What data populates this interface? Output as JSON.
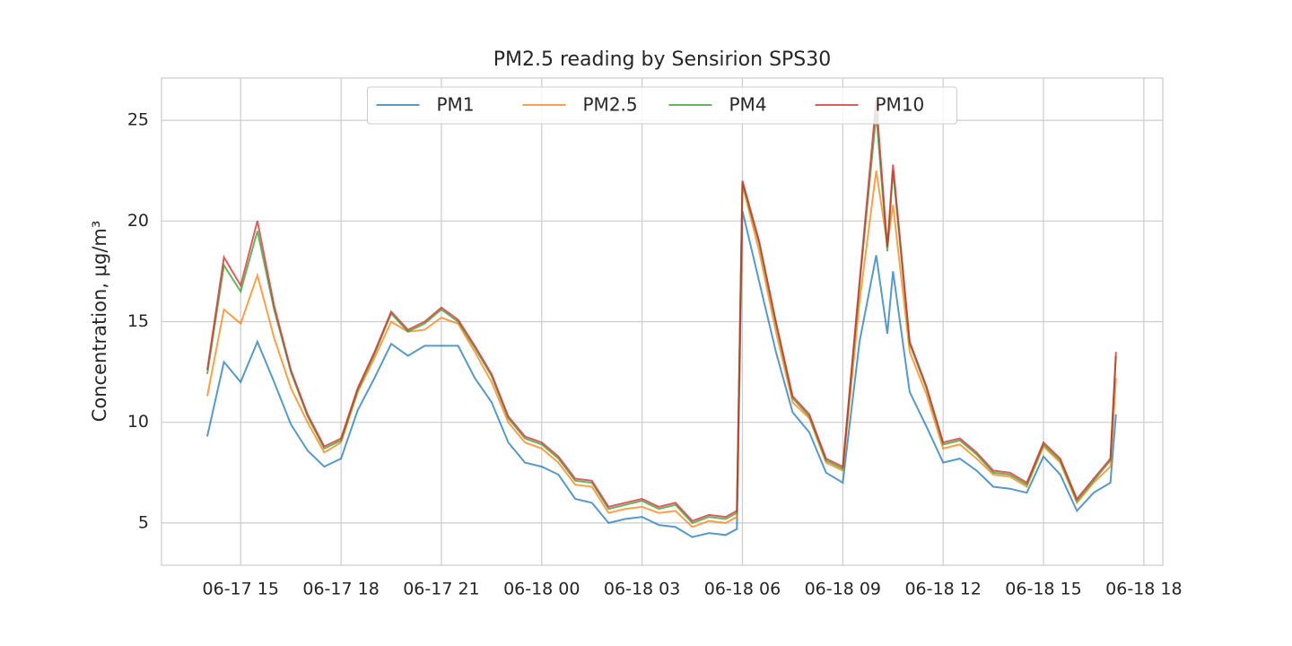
{
  "chart_data": {
    "type": "line",
    "title": "PM2.5 reading by Sensirion SPS30",
    "y_label": "Concentration, μg/m³",
    "x": [
      "06-17 14:00",
      "06-17 14:30",
      "06-17 15:00",
      "06-17 15:30",
      "06-17 16:00",
      "06-17 16:30",
      "06-17 17:00",
      "06-17 17:30",
      "06-17 18:00",
      "06-17 18:30",
      "06-17 19:00",
      "06-17 19:30",
      "06-17 20:00",
      "06-17 20:30",
      "06-17 21:00",
      "06-17 21:30",
      "06-17 22:00",
      "06-17 22:30",
      "06-17 23:00",
      "06-17 23:30",
      "06-18 00:00",
      "06-18 00:30",
      "06-18 01:00",
      "06-18 01:30",
      "06-18 02:00",
      "06-18 02:30",
      "06-18 03:00",
      "06-18 03:30",
      "06-18 04:00",
      "06-18 04:30",
      "06-18 05:00",
      "06-18 05:30",
      "06-18 05:50",
      "06-18 06:00",
      "06-18 06:30",
      "06-18 07:00",
      "06-18 07:30",
      "06-18 08:00",
      "06-18 08:30",
      "06-18 09:00",
      "06-18 09:30",
      "06-18 10:00",
      "06-18 10:20",
      "06-18 10:30",
      "06-18 11:00",
      "06-18 11:30",
      "06-18 12:00",
      "06-18 12:30",
      "06-18 13:00",
      "06-18 13:30",
      "06-18 14:00",
      "06-18 14:30",
      "06-18 15:00",
      "06-18 15:30",
      "06-18 16:00",
      "06-18 16:30",
      "06-18 17:00",
      "06-18 17:10"
    ],
    "series": [
      {
        "name": "PM1",
        "color": "#1f77b4",
        "values": [
          9.3,
          13.0,
          12.0,
          14.0,
          12.0,
          9.9,
          8.6,
          7.8,
          8.2,
          10.6,
          12.2,
          13.9,
          13.3,
          13.8,
          13.8,
          13.8,
          12.2,
          11.0,
          9.0,
          8.0,
          7.8,
          7.4,
          6.2,
          6.0,
          5.0,
          5.2,
          5.3,
          4.9,
          4.8,
          4.3,
          4.5,
          4.4,
          4.7,
          20.5,
          17.0,
          13.5,
          10.5,
          9.5,
          7.5,
          7.0,
          14.0,
          18.3,
          14.4,
          17.5,
          11.5,
          9.8,
          8.0,
          8.2,
          7.6,
          6.8,
          6.7,
          6.5,
          8.3,
          7.4,
          5.6,
          6.5,
          7.0,
          10.4
        ]
      },
      {
        "name": "PM2.5",
        "color": "#ff7f0e",
        "values": [
          11.3,
          15.6,
          14.9,
          17.3,
          14.2,
          11.7,
          10.0,
          8.5,
          9.0,
          11.5,
          13.2,
          15.0,
          14.5,
          14.6,
          15.2,
          14.9,
          13.5,
          12.0,
          10.0,
          9.0,
          8.7,
          8.0,
          6.9,
          6.8,
          5.5,
          5.7,
          5.8,
          5.5,
          5.6,
          4.8,
          5.1,
          5.0,
          5.3,
          21.8,
          18.5,
          14.5,
          11.0,
          10.2,
          8.0,
          7.6,
          16.0,
          22.5,
          18.8,
          20.8,
          13.5,
          11.4,
          8.7,
          8.9,
          8.2,
          7.4,
          7.3,
          6.8,
          8.8,
          8.0,
          6.0,
          7.0,
          7.8,
          12.2
        ]
      },
      {
        "name": "PM4",
        "color": "#2ca02c",
        "values": [
          12.4,
          17.8,
          16.5,
          19.5,
          15.6,
          12.5,
          10.3,
          8.7,
          9.1,
          11.6,
          13.4,
          15.4,
          14.5,
          14.9,
          15.6,
          15.0,
          13.7,
          12.3,
          10.2,
          9.2,
          8.9,
          8.2,
          7.1,
          7.0,
          5.7,
          5.9,
          6.1,
          5.7,
          5.9,
          5.0,
          5.3,
          5.2,
          5.5,
          21.9,
          18.9,
          14.9,
          11.2,
          10.3,
          8.1,
          7.7,
          16.8,
          25.3,
          18.5,
          22.5,
          13.9,
          11.7,
          8.9,
          9.1,
          8.4,
          7.5,
          7.4,
          6.9,
          8.9,
          8.1,
          6.1,
          7.1,
          8.1,
          13.3
        ]
      },
      {
        "name": "PM10",
        "color": "#d62728",
        "values": [
          12.6,
          18.2,
          16.8,
          20.0,
          15.8,
          12.6,
          10.4,
          8.8,
          9.2,
          11.7,
          13.5,
          15.5,
          14.6,
          15.0,
          15.7,
          15.1,
          13.8,
          12.4,
          10.3,
          9.3,
          9.0,
          8.3,
          7.2,
          7.1,
          5.8,
          6.0,
          6.2,
          5.8,
          6.0,
          5.1,
          5.4,
          5.3,
          5.6,
          22.0,
          19.0,
          15.0,
          11.3,
          10.4,
          8.2,
          7.8,
          17.0,
          26.0,
          18.7,
          22.8,
          14.0,
          11.8,
          9.0,
          9.2,
          8.5,
          7.6,
          7.5,
          7.0,
          9.0,
          8.2,
          6.2,
          7.2,
          8.2,
          13.5
        ]
      }
    ],
    "alpha": 0.75,
    "xlim": [
      "06-17 12:38",
      "06-18 18:34"
    ],
    "xticks": [
      {
        "value": "06-17 15:00",
        "label": "06-17 15"
      },
      {
        "value": "06-17 18:00",
        "label": "06-17 18"
      },
      {
        "value": "06-17 21:00",
        "label": "06-17 21"
      },
      {
        "value": "06-18 00:00",
        "label": "06-18 00"
      },
      {
        "value": "06-18 03:00",
        "label": "06-18 03"
      },
      {
        "value": "06-18 06:00",
        "label": "06-18 06"
      },
      {
        "value": "06-18 09:00",
        "label": "06-18 09"
      },
      {
        "value": "06-18 12:00",
        "label": "06-18 12"
      },
      {
        "value": "06-18 15:00",
        "label": "06-18 15"
      },
      {
        "value": "06-18 18:00",
        "label": "06-18 18"
      }
    ],
    "ylim": [
      2.9,
      27.1
    ],
    "yticks": [
      5,
      10,
      15,
      20,
      25
    ],
    "grid": true,
    "legend": "upper center"
  }
}
